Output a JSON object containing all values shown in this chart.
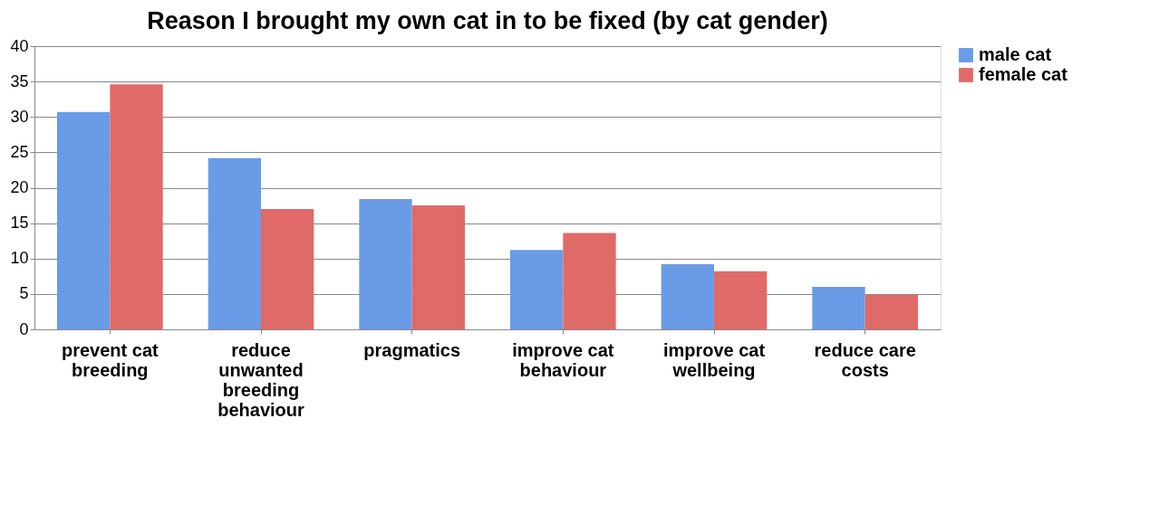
{
  "chart_data": {
    "type": "bar",
    "title": "Reason I brought my own cat in to be fixed (by cat gender)",
    "categories": [
      "prevent cat breeding",
      "reduce unwanted breeding behaviour",
      "pragmatics",
      "improve cat behaviour",
      "improve cat wellbeing",
      "reduce care costs"
    ],
    "series": [
      {
        "name": "male cat",
        "color": "#6a9be6",
        "values": [
          30.7,
          24.2,
          18.4,
          11.2,
          9.2,
          6.0
        ]
      },
      {
        "name": "female cat",
        "color": "#e06a68",
        "values": [
          34.6,
          17.0,
          17.5,
          13.6,
          8.2,
          4.9
        ]
      }
    ],
    "ylim": [
      0,
      40
    ],
    "yticks": [
      0,
      5,
      10,
      15,
      20,
      25,
      30,
      35,
      40
    ],
    "grid": "y",
    "legend": "right"
  }
}
